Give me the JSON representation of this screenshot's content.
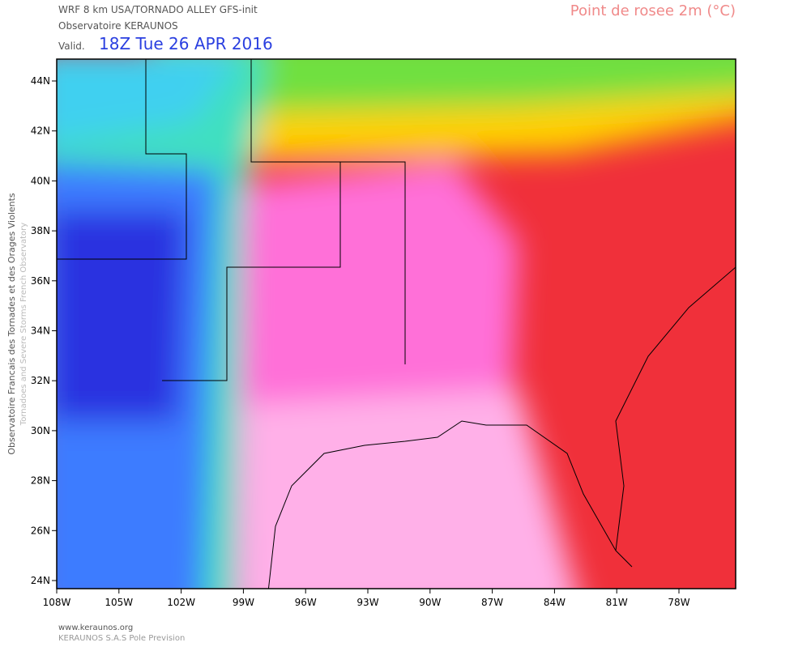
{
  "header": {
    "model": "WRF 8 km USA/TORNADO ALLEY   GFS-init",
    "org": "Observatoire KERAUNOS",
    "valid_label": "Valid.",
    "valid_time": "18Z Tue 26 APR 2016",
    "product": "Point de rosee 2m (°C)"
  },
  "map": {
    "lat_labels": [
      "44N",
      "42N",
      "40N",
      "38N",
      "36N",
      "34N",
      "32N",
      "30N",
      "28N",
      "26N",
      "24N"
    ],
    "lon_labels": [
      "108W",
      "105W",
      "102W",
      "99W",
      "96W",
      "93W",
      "90W",
      "87W",
      "84W",
      "81W",
      "78W"
    ]
  },
  "side": {
    "line1": "Observatoire Francais des Tornades et des Orages Violents",
    "line2": "Tornadoes and Severe Storms French Observatory"
  },
  "footer": {
    "url": "www.keraunos.org",
    "company": "KERAUNOS S.A.S Pole Prevision"
  }
}
